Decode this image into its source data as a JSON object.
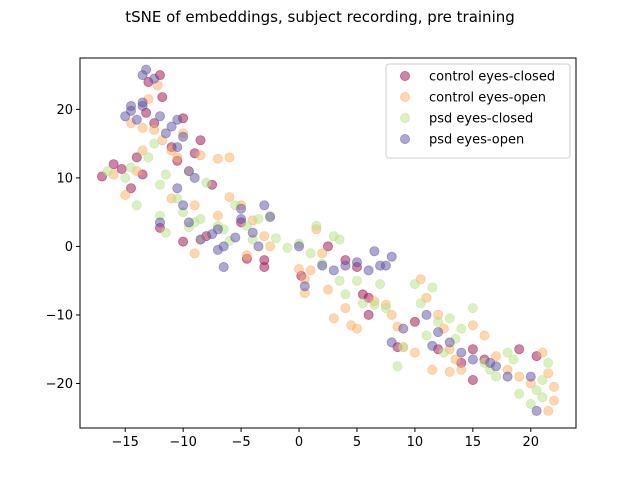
{
  "chart_data": {
    "type": "scatter",
    "title": "tSNE of embeddings, subject recording, pre training",
    "xlabel": "",
    "ylabel": "",
    "xlim": [
      -18.9,
      23.9
    ],
    "ylim": [
      -26.5,
      27.5
    ],
    "xticks": [
      -15,
      -10,
      -5,
      0,
      5,
      10,
      15,
      20
    ],
    "yticks": [
      -20,
      -10,
      0,
      10,
      20
    ],
    "xtick_labels": [
      "−15",
      "−10",
      "−5",
      "0",
      "5",
      "10",
      "15",
      "20"
    ],
    "ytick_labels": [
      "−20",
      "−10",
      "0",
      "10",
      "20"
    ],
    "grid": false,
    "legend_position": "top-right",
    "marker_alpha": 0.5,
    "series": [
      {
        "name": "control eyes-closed",
        "color": "#9b0b4c",
        "points": [
          [
            -17,
            10.2
          ],
          [
            -16,
            12
          ],
          [
            -15.3,
            11.3
          ],
          [
            -14.5,
            8.5
          ],
          [
            -14,
            13
          ],
          [
            -13.5,
            10.5
          ],
          [
            -13.2,
            19.5
          ],
          [
            -13,
            24
          ],
          [
            -12.5,
            18
          ],
          [
            -12,
            25
          ],
          [
            -11.8,
            21.8
          ],
          [
            -11,
            14.5
          ],
          [
            -10,
            18.7
          ],
          [
            -10.5,
            12.5
          ],
          [
            -10,
            0.7
          ],
          [
            -9,
            13.6
          ],
          [
            -8.5,
            15.5
          ],
          [
            -8,
            1.5
          ],
          [
            -7.5,
            9
          ],
          [
            -12,
            2.7
          ],
          [
            -5,
            3.5
          ],
          [
            -3,
            -2
          ],
          [
            -3,
            -3
          ],
          [
            -4.5,
            -1.8
          ],
          [
            0.2,
            -4.3
          ],
          [
            2.5,
            0
          ],
          [
            4,
            -2
          ],
          [
            5,
            -3
          ],
          [
            5.5,
            -7
          ],
          [
            6,
            -7.5
          ],
          [
            6,
            -10
          ],
          [
            8.5,
            -14.7
          ],
          [
            15,
            -15
          ],
          [
            15,
            -19.5
          ],
          [
            16,
            -16.5
          ],
          [
            19,
            -15
          ],
          [
            20.5,
            -16
          ],
          [
            10,
            -11
          ],
          [
            12,
            -15
          ],
          [
            14,
            -17
          ]
        ]
      },
      {
        "name": "control eyes-open",
        "color": "#fdae61",
        "points": [
          [
            -16,
            10.5
          ],
          [
            -15,
            7.5
          ],
          [
            -14,
            11
          ],
          [
            -13.5,
            14
          ],
          [
            -13,
            21.5
          ],
          [
            -12.5,
            17
          ],
          [
            -12.2,
            23.5
          ],
          [
            -11.8,
            15.5
          ],
          [
            -11,
            14
          ],
          [
            -10.5,
            13
          ],
          [
            -10,
            16.5
          ],
          [
            -9.5,
            11
          ],
          [
            -9,
            6
          ],
          [
            -8.5,
            13.3
          ],
          [
            -7,
            12.8
          ],
          [
            -6,
            13
          ],
          [
            -8.5,
            1
          ],
          [
            -9,
            -1
          ],
          [
            -7,
            4.5
          ],
          [
            -6,
            7.2
          ],
          [
            -5,
            6
          ],
          [
            -4,
            3.8
          ],
          [
            -3,
            1.5
          ],
          [
            -4.5,
            -1.3
          ],
          [
            -2.5,
            0
          ],
          [
            0,
            -3.3
          ],
          [
            0.5,
            -4.8
          ],
          [
            0.5,
            -6.8
          ],
          [
            1,
            -3.5
          ],
          [
            2,
            -1
          ],
          [
            2.5,
            -6.3
          ],
          [
            3,
            -10.5
          ],
          [
            4,
            -9
          ],
          [
            4.5,
            -11.5
          ],
          [
            5,
            -12
          ],
          [
            6.5,
            -8
          ],
          [
            7.5,
            -8.5
          ],
          [
            8,
            -10
          ],
          [
            8.5,
            -11.7
          ],
          [
            9,
            -14.7
          ],
          [
            10,
            -15.5
          ],
          [
            10.5,
            -4.8
          ],
          [
            11,
            -7.5
          ],
          [
            12,
            -10
          ],
          [
            12.5,
            -12
          ],
          [
            13,
            -15
          ],
          [
            13.5,
            -16.5
          ],
          [
            14,
            -18
          ],
          [
            15,
            -11.5
          ],
          [
            16,
            -13
          ],
          [
            17,
            -16
          ],
          [
            18,
            -18
          ],
          [
            19,
            -19
          ],
          [
            20,
            -20
          ],
          [
            21,
            -15.5
          ],
          [
            21.5,
            -18.5
          ],
          [
            22,
            -20.5
          ],
          [
            22,
            -22.5
          ],
          [
            21.5,
            -24
          ],
          [
            11.5,
            -18
          ],
          [
            13,
            -18.3
          ],
          [
            1.5,
            2.5
          ],
          [
            -11,
            7
          ],
          [
            -14.5,
            18
          ],
          [
            -13.5,
            17.3
          ]
        ]
      },
      {
        "name": "psd eyes-closed",
        "color": "#b8e186",
        "points": [
          [
            -16.5,
            11
          ],
          [
            -15,
            10
          ],
          [
            -14.5,
            11.5
          ],
          [
            -14,
            6
          ],
          [
            -13,
            13
          ],
          [
            -12.5,
            15
          ],
          [
            -12,
            9
          ],
          [
            -11.5,
            10.5
          ],
          [
            -12,
            4.5
          ],
          [
            -11.5,
            2
          ],
          [
            -10.5,
            7
          ],
          [
            -10,
            5
          ],
          [
            -9.5,
            2.8
          ],
          [
            -9,
            3.5
          ],
          [
            -8.5,
            4
          ],
          [
            -8,
            9.3
          ],
          [
            -7,
            3
          ],
          [
            -6.5,
            2.5
          ],
          [
            -6,
            0.8
          ],
          [
            -5.5,
            6
          ],
          [
            -4.5,
            3
          ],
          [
            -4,
            1
          ],
          [
            -3.5,
            4
          ],
          [
            -2.5,
            4.5
          ],
          [
            -2,
            1.2
          ],
          [
            -1,
            -0.2
          ],
          [
            0,
            0.4
          ],
          [
            1,
            -1
          ],
          [
            1.5,
            3
          ],
          [
            2,
            -2.5
          ],
          [
            3,
            1.5
          ],
          [
            3.5,
            1
          ],
          [
            3.5,
            -5
          ],
          [
            4,
            -7
          ],
          [
            5,
            -5
          ],
          [
            5.5,
            -8.3
          ],
          [
            6.5,
            -8.5
          ],
          [
            7,
            -5.5
          ],
          [
            7.5,
            -9
          ],
          [
            8.5,
            -17.5
          ],
          [
            9,
            -14.7
          ],
          [
            10,
            -5.5
          ],
          [
            10.5,
            -8.3
          ],
          [
            11,
            -13
          ],
          [
            11.5,
            -6
          ],
          [
            12,
            -11
          ],
          [
            12.5,
            -15.5
          ],
          [
            13,
            -10.5
          ],
          [
            13.5,
            -13.5
          ],
          [
            14,
            -12
          ],
          [
            15,
            -9
          ],
          [
            16,
            -17
          ],
          [
            16.5,
            -18
          ],
          [
            17,
            -19
          ],
          [
            18,
            -15.5
          ],
          [
            18.5,
            -16.5
          ],
          [
            19,
            -21.5
          ],
          [
            20,
            -23
          ],
          [
            20.5,
            -21
          ],
          [
            21,
            -19.5
          ],
          [
            21.5,
            -17
          ],
          [
            21,
            -22
          ]
        ]
      },
      {
        "name": "psd eyes-open",
        "color": "#5e4fa2",
        "points": [
          [
            -15,
            19
          ],
          [
            -14.5,
            20.5
          ],
          [
            -14,
            18.5
          ],
          [
            -14.5,
            19.8
          ],
          [
            -13.5,
            21
          ],
          [
            -13.2,
            25.8
          ],
          [
            -13.5,
            25
          ],
          [
            -12.5,
            24.5
          ],
          [
            -13.5,
            20.5
          ],
          [
            -12,
            19
          ],
          [
            -12,
            3.5
          ],
          [
            -11.5,
            16.5
          ],
          [
            -11,
            17.5
          ],
          [
            -10.5,
            18.5
          ],
          [
            -10.5,
            14.5
          ],
          [
            -10,
            16
          ],
          [
            -10.5,
            8.5
          ],
          [
            -10,
            6
          ],
          [
            -9.5,
            3.5
          ],
          [
            -9.5,
            11
          ],
          [
            -9,
            10
          ],
          [
            -8.5,
            1
          ],
          [
            -7.5,
            1.8
          ],
          [
            -7,
            -0.5
          ],
          [
            -7,
            2.5
          ],
          [
            -6.5,
            0
          ],
          [
            -6.5,
            -3
          ],
          [
            -5.5,
            1.3
          ],
          [
            -5,
            4
          ],
          [
            -5,
            5.5
          ],
          [
            -4,
            2
          ],
          [
            -3.5,
            0
          ],
          [
            -3,
            6
          ],
          [
            -2.5,
            4.3
          ],
          [
            0,
            0
          ],
          [
            0.5,
            -5.8
          ],
          [
            2,
            -2.8
          ],
          [
            3,
            -3.5
          ],
          [
            4,
            -2.8
          ],
          [
            5,
            -2.3
          ],
          [
            6,
            -3.5
          ],
          [
            6.5,
            -0.7
          ],
          [
            7,
            -2.8
          ],
          [
            7.5,
            -2.8
          ],
          [
            8,
            -1.5
          ],
          [
            9,
            -12
          ],
          [
            8,
            -14
          ],
          [
            11,
            -10
          ],
          [
            11.5,
            -14.5
          ],
          [
            12,
            -12.5
          ],
          [
            13,
            -14
          ],
          [
            14,
            -15.5
          ],
          [
            15,
            -16.5
          ],
          [
            16.5,
            -17
          ],
          [
            17,
            -17.5
          ],
          [
            18,
            -19
          ],
          [
            20,
            -19
          ],
          [
            20.5,
            -24
          ]
        ]
      }
    ]
  }
}
